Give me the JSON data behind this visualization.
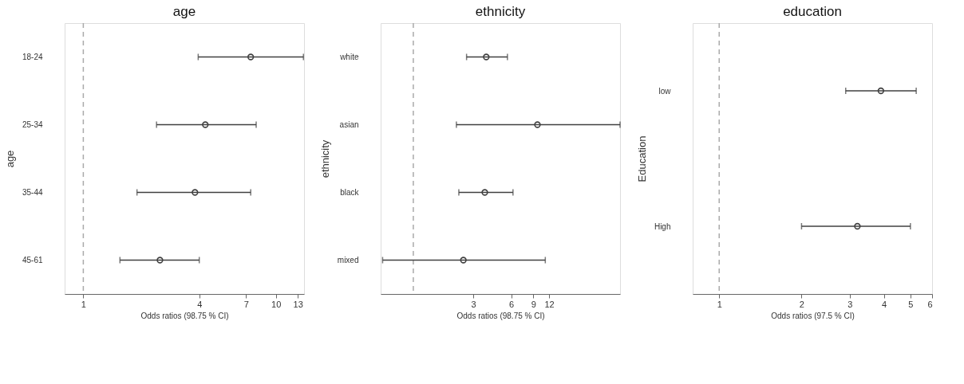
{
  "chart_data": [
    {
      "type": "scatter",
      "orientation": "horizontal",
      "title": "age",
      "xlabel": "Odds ratios (98.75 % CI)",
      "ylabel": "age",
      "categories": [
        "18-24",
        "25-34",
        "35-44",
        "45-61"
      ],
      "values": [
        7.4,
        4.3,
        3.8,
        2.5
      ],
      "errors": [
        [
          3.95,
          13.9
        ],
        [
          2.4,
          7.9
        ],
        [
          1.9,
          7.4
        ],
        [
          1.55,
          4.0
        ]
      ],
      "color": "#404040",
      "marker": "circle",
      "log": "x",
      "xlim": [
        0.8,
        14
      ],
      "xticks": [
        1,
        4,
        7,
        10,
        13
      ],
      "grid": false,
      "ref_lines": [
        {
          "axis": "x",
          "value": 1,
          "color": "#aaaaaa",
          "line_style": "dashed"
        }
      ]
    },
    {
      "type": "scatter",
      "orientation": "horizontal",
      "title": "ethnicity",
      "xlabel": "Odds ratios (98.75 % CI)",
      "ylabel": "ethnicity",
      "categories": [
        "white",
        "asian",
        "black",
        "mixed"
      ],
      "values": [
        3.8,
        9.7,
        3.7,
        2.5
      ],
      "errors": [
        [
          2.65,
          5.6
        ],
        [
          2.2,
          44
        ],
        [
          2.3,
          6.2
        ],
        [
          0.57,
          11.2
        ]
      ],
      "color": "#404040",
      "marker": "circle",
      "log": "x",
      "xlim": [
        0.55,
        44
      ],
      "xticks": [
        3,
        6,
        9,
        12
      ],
      "grid": false,
      "ref_lines": [
        {
          "axis": "x",
          "value": 1,
          "color": "#aaaaaa",
          "line_style": "dashed"
        }
      ]
    },
    {
      "type": "scatter",
      "orientation": "horizontal",
      "title": "education",
      "xlabel": "Odds ratios (97.5 % CI)",
      "ylabel": "Education",
      "categories": [
        "low",
        "High"
      ],
      "values": [
        3.9,
        3.2
      ],
      "errors": [
        [
          2.9,
          5.25
        ],
        [
          2.0,
          5.0
        ]
      ],
      "color": "#404040",
      "marker": "circle",
      "log": "x",
      "xlim": [
        0.8,
        6
      ],
      "xticks": [
        1,
        2,
        3,
        4,
        5,
        6
      ],
      "grid": false,
      "ref_lines": [
        {
          "axis": "x",
          "value": 1,
          "color": "#aaaaaa",
          "line_style": "dashed"
        }
      ]
    }
  ]
}
